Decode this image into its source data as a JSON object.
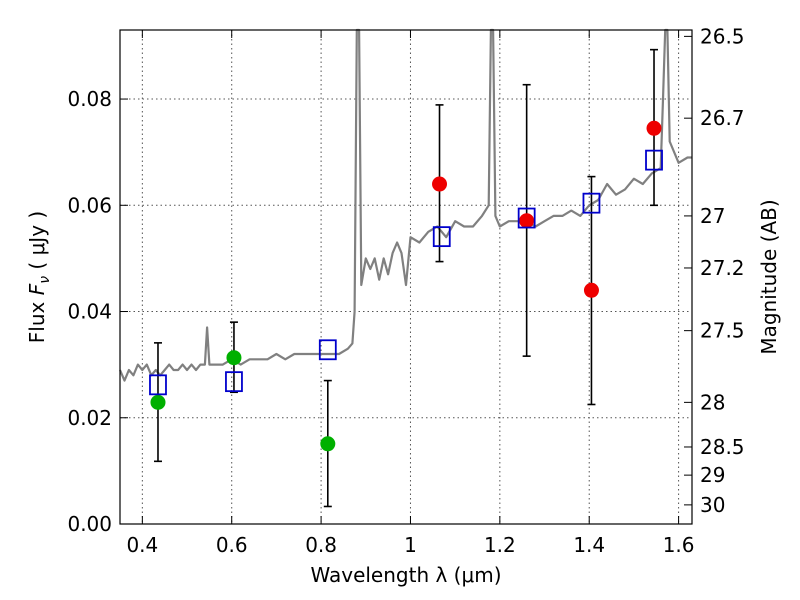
{
  "chart_data": {
    "type": "scatter",
    "xlabel": "Wavelength  λ (μm)",
    "ylabel": "Flux  F_ν  ( μJy )",
    "ylabel_parts": {
      "pre": "Flux  ",
      "symbol": "F",
      "sub": "ν",
      "post": "  ( μJy )"
    },
    "y2label": "Magnitude (AB)",
    "xlim": [
      0.35,
      1.63
    ],
    "ylim": [
      0.0,
      0.093
    ],
    "grid": true,
    "x_ticks": [
      0.4,
      0.6,
      0.8,
      1.0,
      1.2,
      1.4,
      1.6
    ],
    "x_tick_labels": [
      "0.4",
      "0.6",
      "0.8",
      "1",
      "1.2",
      "1.4",
      "1.6"
    ],
    "y_ticks": [
      0.0,
      0.02,
      0.04,
      0.06,
      0.08
    ],
    "y_tick_labels": [
      "0.00",
      "0.02",
      "0.04",
      "0.06",
      "0.08"
    ],
    "y2_ticks": [
      {
        "label": "26.5",
        "flux": 0.0918
      },
      {
        "label": "26.7",
        "flux": 0.0764
      },
      {
        "label": "27",
        "flux": 0.058
      },
      {
        "label": "27.2",
        "flux": 0.0482
      },
      {
        "label": "27.5",
        "flux": 0.0364
      },
      {
        "label": "28",
        "flux": 0.0229
      },
      {
        "label": "28.5",
        "flux": 0.0145
      },
      {
        "label": "29",
        "flux": 0.0092
      },
      {
        "label": "30",
        "flux": 0.0036
      }
    ],
    "colors": {
      "model": "#808080",
      "green": "#00b000",
      "red": "#ee0000",
      "square": "#0000cc",
      "errorbar": "#000000",
      "grid": "#555555"
    },
    "series": [
      {
        "name": "green points",
        "marker": "circle",
        "color": "#00b000",
        "x": [
          0.435,
          0.605,
          0.815
        ],
        "y": [
          0.0229,
          0.0313,
          0.0151
        ],
        "yerr_low": [
          0.0118,
          0.0248,
          0.0033
        ],
        "yerr_high": [
          0.0341,
          0.038,
          0.027
        ]
      },
      {
        "name": "red points",
        "marker": "circle",
        "color": "#ee0000",
        "x": [
          1.065,
          1.26,
          1.405,
          1.545
        ],
        "y": [
          0.064,
          0.0571,
          0.044,
          0.0745
        ],
        "yerr_low": [
          0.0494,
          0.0316,
          0.0225,
          0.06
        ],
        "yerr_high": [
          0.0789,
          0.0827,
          0.0654,
          0.0893
        ]
      },
      {
        "name": "model photometry",
        "marker": "square",
        "color": "#0000cc",
        "x": [
          0.435,
          0.605,
          0.815,
          1.07,
          1.26,
          1.405,
          1.545
        ],
        "y": [
          0.0262,
          0.0268,
          0.0328,
          0.0541,
          0.0576,
          0.0604,
          0.0685
        ]
      },
      {
        "name": "model spectrum",
        "type": "line",
        "color": "#808080",
        "x": [
          0.35,
          0.36,
          0.37,
          0.38,
          0.39,
          0.4,
          0.41,
          0.42,
          0.43,
          0.44,
          0.45,
          0.46,
          0.47,
          0.48,
          0.49,
          0.5,
          0.51,
          0.52,
          0.53,
          0.54,
          0.545,
          0.55,
          0.555,
          0.56,
          0.58,
          0.6,
          0.62,
          0.64,
          0.66,
          0.68,
          0.7,
          0.72,
          0.74,
          0.76,
          0.78,
          0.8,
          0.82,
          0.84,
          0.86,
          0.87,
          0.875,
          0.88,
          0.885,
          0.89,
          0.9,
          0.91,
          0.92,
          0.93,
          0.94,
          0.95,
          0.96,
          0.97,
          0.98,
          0.99,
          1.0,
          1.02,
          1.04,
          1.06,
          1.08,
          1.1,
          1.12,
          1.14,
          1.16,
          1.175,
          1.18,
          1.185,
          1.19,
          1.2,
          1.22,
          1.24,
          1.26,
          1.28,
          1.3,
          1.32,
          1.34,
          1.36,
          1.38,
          1.4,
          1.42,
          1.44,
          1.46,
          1.48,
          1.5,
          1.52,
          1.54,
          1.56,
          1.565,
          1.57,
          1.575,
          1.58,
          1.6,
          1.62,
          1.63
        ],
        "y": [
          0.029,
          0.027,
          0.029,
          0.028,
          0.03,
          0.029,
          0.03,
          0.028,
          0.029,
          0.028,
          0.029,
          0.03,
          0.029,
          0.029,
          0.03,
          0.029,
          0.03,
          0.029,
          0.03,
          0.03,
          0.037,
          0.03,
          0.03,
          0.03,
          0.03,
          0.031,
          0.03,
          0.031,
          0.031,
          0.031,
          0.032,
          0.031,
          0.032,
          0.032,
          0.032,
          0.032,
          0.032,
          0.032,
          0.033,
          0.034,
          0.04,
          0.093,
          0.093,
          0.045,
          0.05,
          0.048,
          0.05,
          0.046,
          0.05,
          0.047,
          0.051,
          0.053,
          0.051,
          0.045,
          0.054,
          0.053,
          0.055,
          0.056,
          0.054,
          0.057,
          0.056,
          0.056,
          0.058,
          0.06,
          0.093,
          0.093,
          0.058,
          0.056,
          0.057,
          0.057,
          0.057,
          0.056,
          0.057,
          0.058,
          0.058,
          0.059,
          0.058,
          0.06,
          0.061,
          0.064,
          0.062,
          0.063,
          0.065,
          0.064,
          0.066,
          0.067,
          0.08,
          0.093,
          0.093,
          0.072,
          0.068,
          0.069,
          0.069
        ]
      }
    ]
  }
}
